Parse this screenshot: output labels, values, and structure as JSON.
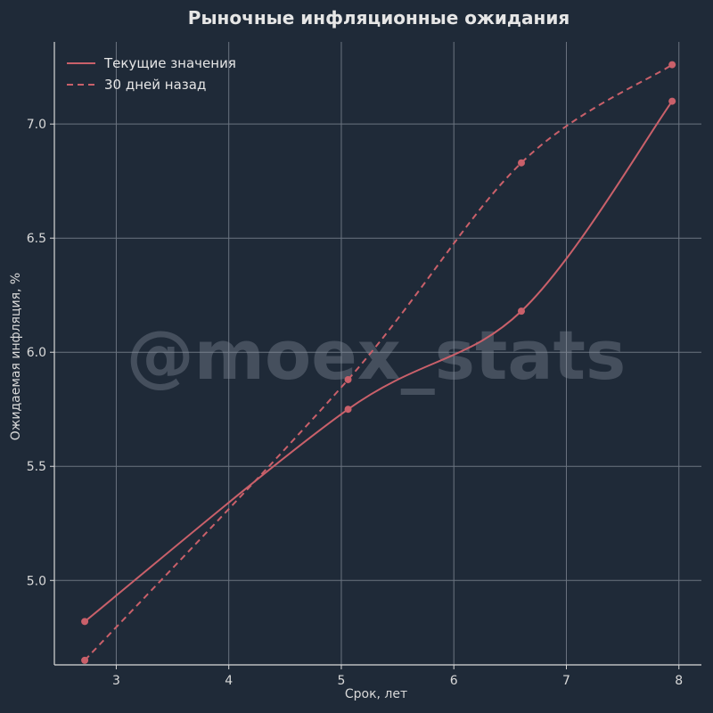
{
  "chart_data": {
    "type": "line",
    "title": "Рыночные инфляционные ожидания",
    "xlabel": "Срок, лет",
    "ylabel": "Ожидаемая инфляция, %",
    "xlim": [
      2.45,
      8.2
    ],
    "ylim": [
      4.63,
      7.36
    ],
    "xticks": [
      3,
      4,
      5,
      6,
      7,
      8
    ],
    "yticks": [
      5.0,
      5.5,
      6.0,
      6.5,
      7.0
    ],
    "grid": true,
    "legend_position": "top-left",
    "series": [
      {
        "name": "Текущие значения",
        "style": "solid",
        "color": "#c9606a",
        "x": [
          2.72,
          5.06,
          6.6,
          7.94
        ],
        "y": [
          4.82,
          5.75,
          6.18,
          7.1
        ]
      },
      {
        "name": "30 дней назад",
        "style": "dashed",
        "color": "#c9606a",
        "x": [
          2.72,
          5.06,
          6.6,
          7.94
        ],
        "y": [
          4.65,
          5.88,
          6.83,
          7.26
        ]
      }
    ]
  },
  "watermark": "@moex_stats",
  "colors": {
    "background": "#1f2a38",
    "grid": "#6b7480",
    "axis": "#d9d9d9",
    "series": "#c9606a"
  }
}
